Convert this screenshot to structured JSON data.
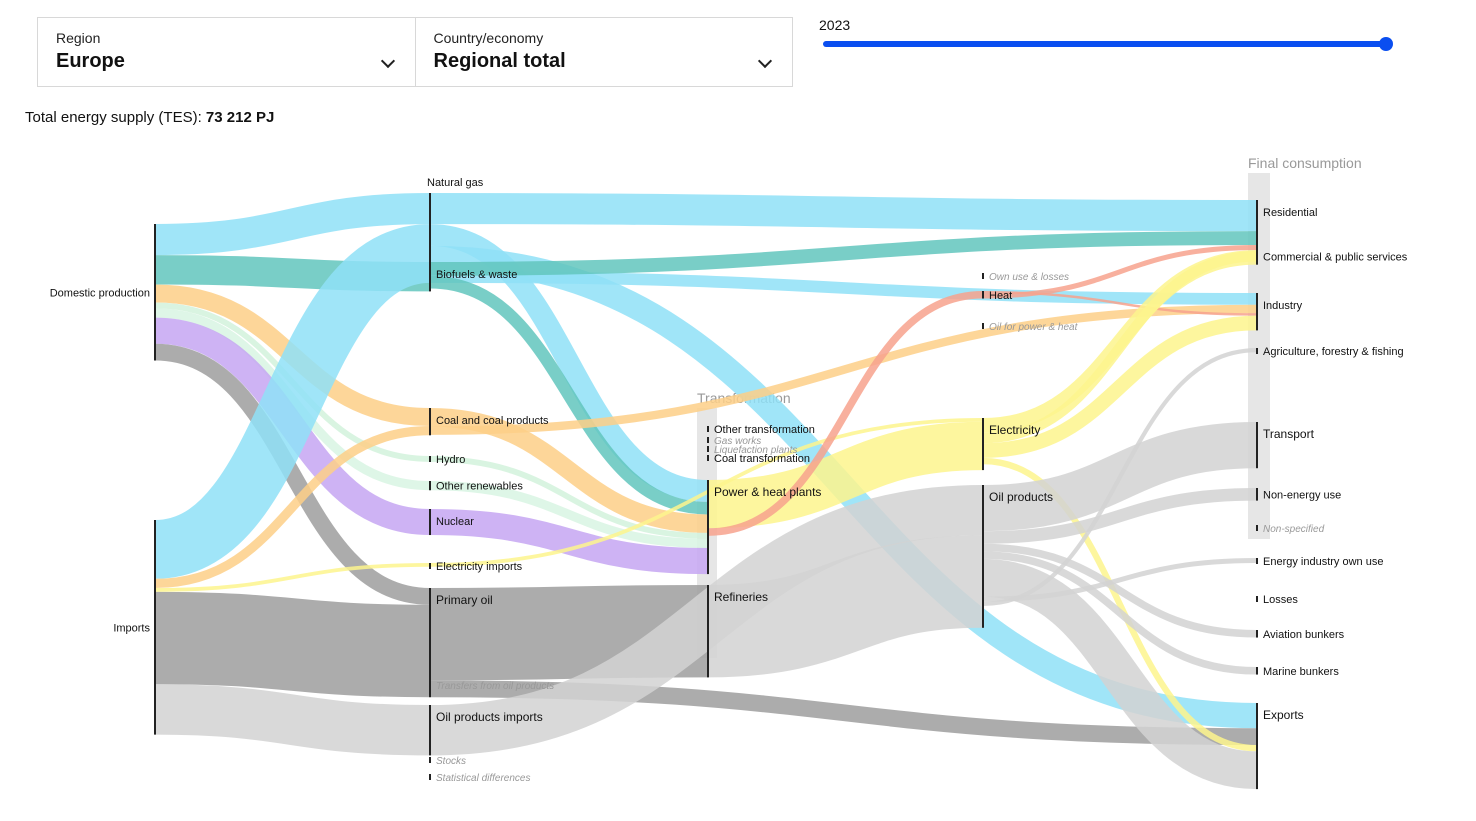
{
  "filters": {
    "region_label": "Region",
    "region_value": "Europe",
    "country_label": "Country/economy",
    "country_value": "Regional total"
  },
  "year": {
    "value": "2023",
    "min_fraction": 0,
    "value_fraction": 1.0
  },
  "tes": {
    "label": "Total energy supply (TES):",
    "value": "73 212 PJ"
  },
  "colors": {
    "gas": "#8fe0f7",
    "biofuels": "#62c6bd",
    "coal": "#fdcf87",
    "nuclear": "#c6a6f2",
    "renew": "#d8f5e3",
    "hydro": "#d2f2dc",
    "oil": "#9e9e9e",
    "oilprod": "#d2d2d2",
    "electricity": "#fdf48d",
    "heat": "#f7a28d",
    "gasworks": "#cccccc",
    "node": "#222222"
  },
  "chart_data": {
    "type": "sankey",
    "column_headers": {
      "transformation": "Transformation",
      "final": "Final consumption"
    },
    "nodes": [
      {
        "id": "domestic",
        "label": "Domestic production",
        "col": 0,
        "style": "n"
      },
      {
        "id": "imports",
        "label": "Imports",
        "col": 0,
        "style": "n"
      },
      {
        "id": "natgas",
        "label": "Natural gas",
        "col": 1,
        "style": "n"
      },
      {
        "id": "biofuels",
        "label": "Biofuels & waste",
        "col": 1,
        "style": "s"
      },
      {
        "id": "coal",
        "label": "Coal and coal products",
        "col": 1,
        "style": "s"
      },
      {
        "id": "hydro",
        "label": "Hydro",
        "col": 1,
        "style": "s"
      },
      {
        "id": "otherren",
        "label": "Other renewables",
        "col": 1,
        "style": "s"
      },
      {
        "id": "nuclear",
        "label": "Nuclear",
        "col": 1,
        "style": "s"
      },
      {
        "id": "elecimp",
        "label": "Electricity imports",
        "col": 1,
        "style": "s"
      },
      {
        "id": "primoil",
        "label": "Primary oil",
        "col": 1,
        "style": "m"
      },
      {
        "id": "transfers",
        "label": "Transfers from oil products",
        "col": 1,
        "style": "i"
      },
      {
        "id": "oilprodimp",
        "label": "Oil products imports",
        "col": 1,
        "style": "m"
      },
      {
        "id": "stocks",
        "label": "Stocks",
        "col": 1,
        "style": "i"
      },
      {
        "id": "statdiff",
        "label": "Statistical differences",
        "col": 1,
        "style": "i"
      },
      {
        "id": "othertrans",
        "label": "Other transformation",
        "col": 2,
        "style": "s"
      },
      {
        "id": "gasworks",
        "label": "Gas works",
        "col": 2,
        "style": "i"
      },
      {
        "id": "liquefaction",
        "label": "Liquefaction plants",
        "col": 2,
        "style": "i"
      },
      {
        "id": "coaltrans",
        "label": "Coal transformation",
        "col": 2,
        "style": "s"
      },
      {
        "id": "power",
        "label": "Power & heat plants",
        "col": 2,
        "style": "m"
      },
      {
        "id": "refineries",
        "label": "Refineries",
        "col": 2,
        "style": "m"
      },
      {
        "id": "ownuse",
        "label": "Own use & losses",
        "col": 3,
        "style": "i"
      },
      {
        "id": "heat",
        "label": "Heat",
        "col": 3,
        "style": "s"
      },
      {
        "id": "oilpowerheat",
        "label": "Oil for power & heat",
        "col": 3,
        "style": "i"
      },
      {
        "id": "electricity",
        "label": "Electricity",
        "col": 3,
        "style": "m"
      },
      {
        "id": "oilproducts",
        "label": "Oil products",
        "col": 3,
        "style": "m"
      },
      {
        "id": "residential",
        "label": "Residential",
        "col": 4,
        "style": "s"
      },
      {
        "id": "commercial",
        "label": "Commercial & public services",
        "col": 4,
        "style": "s"
      },
      {
        "id": "industry",
        "label": "Industry",
        "col": 4,
        "style": "s"
      },
      {
        "id": "agriculture",
        "label": "Agriculture, forestry & fishing",
        "col": 4,
        "style": "s"
      },
      {
        "id": "transport",
        "label": "Transport",
        "col": 4,
        "style": "m"
      },
      {
        "id": "nonenergy",
        "label": "Non-energy use",
        "col": 4,
        "style": "s"
      },
      {
        "id": "nonspecified",
        "label": "Non-specified",
        "col": 4,
        "style": "i"
      },
      {
        "id": "energyown",
        "label": "Energy industry own use",
        "col": 4,
        "style": "s"
      },
      {
        "id": "losses",
        "label": "Losses",
        "col": 4,
        "style": "s"
      },
      {
        "id": "aviation",
        "label": "Aviation bunkers",
        "col": 4,
        "style": "s"
      },
      {
        "id": "marine",
        "label": "Marine bunkers",
        "col": 4,
        "style": "s"
      },
      {
        "id": "exports",
        "label": "Exports",
        "col": 4,
        "style": "m"
      }
    ],
    "flows": [
      {
        "from": "domestic",
        "to": "natgas",
        "value": 7400,
        "color": "gas"
      },
      {
        "from": "domestic",
        "to": "biofuels",
        "value": 7000,
        "color": "biofuels"
      },
      {
        "from": "domestic",
        "to": "coal",
        "value": 4300,
        "color": "coal"
      },
      {
        "from": "domestic",
        "to": "hydro",
        "value": 1400,
        "color": "hydro"
      },
      {
        "from": "domestic",
        "to": "otherren",
        "value": 2200,
        "color": "renew"
      },
      {
        "from": "domestic",
        "to": "nuclear",
        "value": 6200,
        "color": "nuclear"
      },
      {
        "from": "domestic",
        "to": "primoil",
        "value": 4000,
        "color": "oil"
      },
      {
        "from": "imports",
        "to": "natgas",
        "value": 14000,
        "color": "gas"
      },
      {
        "from": "imports",
        "to": "coal",
        "value": 2200,
        "color": "coal"
      },
      {
        "from": "imports",
        "to": "elecimp",
        "value": 900,
        "color": "electricity"
      },
      {
        "from": "imports",
        "to": "primoil",
        "value": 22000,
        "color": "oil"
      },
      {
        "from": "imports",
        "to": "oilprodimp",
        "value": 12000,
        "color": "oilprod"
      },
      {
        "from": "natgas",
        "to": "residential",
        "value": 7400,
        "color": "gas"
      },
      {
        "from": "natgas",
        "to": "power",
        "value": 5200,
        "color": "gas"
      },
      {
        "from": "natgas",
        "to": "exports",
        "value": 6000,
        "color": "gas"
      },
      {
        "from": "natgas",
        "to": "industry",
        "value": 2800,
        "color": "gas"
      },
      {
        "from": "biofuels",
        "to": "residential",
        "value": 3300,
        "color": "biofuels"
      },
      {
        "from": "biofuels",
        "to": "power",
        "value": 3000,
        "color": "biofuels"
      },
      {
        "from": "coal",
        "to": "power",
        "value": 4400,
        "color": "coal"
      },
      {
        "from": "coal",
        "to": "industry",
        "value": 2000,
        "color": "coal"
      },
      {
        "from": "hydro",
        "to": "power",
        "value": 1400,
        "color": "hydro"
      },
      {
        "from": "otherren",
        "to": "power",
        "value": 2200,
        "color": "renew"
      },
      {
        "from": "nuclear",
        "to": "power",
        "value": 6200,
        "color": "nuclear"
      },
      {
        "from": "elecimp",
        "to": "electricity",
        "value": 900,
        "color": "electricity"
      },
      {
        "from": "primoil",
        "to": "refineries",
        "value": 22000,
        "color": "oil"
      },
      {
        "from": "primoil",
        "to": "exports",
        "value": 4000,
        "color": "oil"
      },
      {
        "from": "oilprodimp",
        "to": "oilproducts",
        "value": 12000,
        "color": "oilprod"
      },
      {
        "from": "power",
        "to": "electricity",
        "value": 11500,
        "color": "electricity"
      },
      {
        "from": "power",
        "to": "heat",
        "value": 1800,
        "color": "heat"
      },
      {
        "from": "refineries",
        "to": "oilproducts",
        "value": 22000,
        "color": "oilprod"
      },
      {
        "from": "heat",
        "to": "industry",
        "value": 600,
        "color": "heat"
      },
      {
        "from": "heat",
        "to": "residential",
        "value": 1200,
        "color": "heat"
      },
      {
        "from": "electricity",
        "to": "residential",
        "value": 3500,
        "color": "electricity"
      },
      {
        "from": "electricity",
        "to": "commercial",
        "value": 2500,
        "color": "electricity"
      },
      {
        "from": "electricity",
        "to": "industry",
        "value": 3500,
        "color": "electricity"
      },
      {
        "from": "electricity",
        "to": "exports",
        "value": 1500,
        "color": "electricity"
      },
      {
        "from": "oilproducts",
        "to": "transport",
        "value": 11000,
        "color": "oilprod"
      },
      {
        "from": "oilproducts",
        "to": "nonenergy",
        "value": 3000,
        "color": "oilprod"
      },
      {
        "from": "oilproducts",
        "to": "aviation",
        "value": 1800,
        "color": "oilprod"
      },
      {
        "from": "oilproducts",
        "to": "marine",
        "value": 1800,
        "color": "oilprod"
      },
      {
        "from": "oilproducts",
        "to": "exports",
        "value": 9000,
        "color": "oilprod"
      },
      {
        "from": "oilproducts",
        "to": "energyown",
        "value": 1200,
        "color": "oilprod"
      },
      {
        "from": "oilproducts",
        "to": "agriculture",
        "value": 1000,
        "color": "oilprod"
      }
    ]
  }
}
